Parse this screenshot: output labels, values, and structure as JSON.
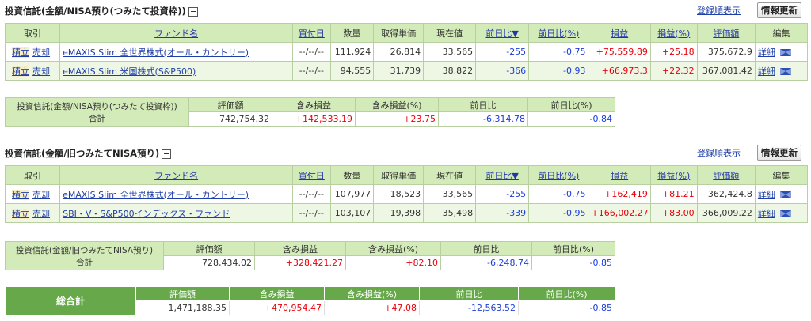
{
  "common": {
    "register_order": "登録順表示",
    "refresh": "情報更新",
    "sum_label": "合計"
  },
  "columns": {
    "type": "取引",
    "fund": "ファンド名",
    "date": "買付日",
    "qty": "数量",
    "cost": "取得単価",
    "price": "現在値",
    "change": "前日比▼",
    "change_pct": "前日比(%)",
    "pl": "損益",
    "pl_pct": "損益(%)",
    "value": "評価額",
    "edit": "編集"
  },
  "actions": {
    "buy": "積立",
    "sell": "売却",
    "detail": "詳細"
  },
  "summary_columns": {
    "value": "評価額",
    "unrealized": "含み損益",
    "unrealized_pct": "含み損益(%)",
    "change": "前日比",
    "change_pct": "前日比(%)"
  },
  "section1": {
    "title": "投資信託(金額/NISA預り(つみたて投資枠))",
    "rows": [
      {
        "fund": "eMAXIS Slim 全世界株式(オール・カントリー)",
        "date": "--/--/--",
        "qty": "111,924",
        "cost": "26,814",
        "price": "33,565",
        "change": "-255",
        "change_pct": "-0.75",
        "pl": "+75,559.89",
        "pl_pct": "+25.18",
        "value": "375,672.9"
      },
      {
        "fund": "eMAXIS Slim 米国株式(S&P500)",
        "date": "--/--/--",
        "qty": "94,555",
        "cost": "31,739",
        "price": "38,822",
        "change": "-366",
        "change_pct": "-0.93",
        "pl": "+66,973.3",
        "pl_pct": "+22.32",
        "value": "367,081.42"
      }
    ],
    "summary": {
      "label": "投資信託(金額/NISA預り(つみたて投資枠))",
      "value": "742,754.32",
      "unrealized": "+142,533.19",
      "unrealized_pct": "+23.75",
      "change": "-6,314.78",
      "change_pct": "-0.84"
    }
  },
  "section2": {
    "title": "投資信託(金額/旧つみたてNISA預り)",
    "rows": [
      {
        "fund": "eMAXIS Slim 全世界株式(オール・カントリー)",
        "date": "--/--/--",
        "qty": "107,977",
        "cost": "18,523",
        "price": "33,565",
        "change": "-255",
        "change_pct": "-0.75",
        "pl": "+162,419",
        "pl_pct": "+81.21",
        "value": "362,424.8"
      },
      {
        "fund": "SBI・V・S&P500インデックス・ファンド",
        "date": "--/--/--",
        "qty": "103,107",
        "cost": "19,398",
        "price": "35,498",
        "change": "-339",
        "change_pct": "-0.95",
        "pl": "+166,002.27",
        "pl_pct": "+83.00",
        "value": "366,009.22"
      }
    ],
    "summary": {
      "label": "投資信託(金額/旧つみたてNISA預り)",
      "value": "728,434.02",
      "unrealized": "+328,421.27",
      "unrealized_pct": "+82.10",
      "change": "-6,248.74",
      "change_pct": "-0.85"
    }
  },
  "grand_total": {
    "label": "総合計",
    "value": "1,471,188.35",
    "unrealized": "+470,954.47",
    "unrealized_pct": "+47.08",
    "change": "-12,563.52",
    "change_pct": "-0.85"
  }
}
